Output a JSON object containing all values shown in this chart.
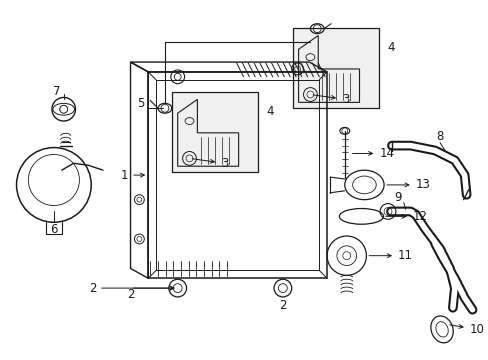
{
  "background_color": "#ffffff",
  "fig_width": 4.89,
  "fig_height": 3.6,
  "dpi": 100,
  "line_color": "#1a1a1a",
  "label_fontsize": 8.5
}
